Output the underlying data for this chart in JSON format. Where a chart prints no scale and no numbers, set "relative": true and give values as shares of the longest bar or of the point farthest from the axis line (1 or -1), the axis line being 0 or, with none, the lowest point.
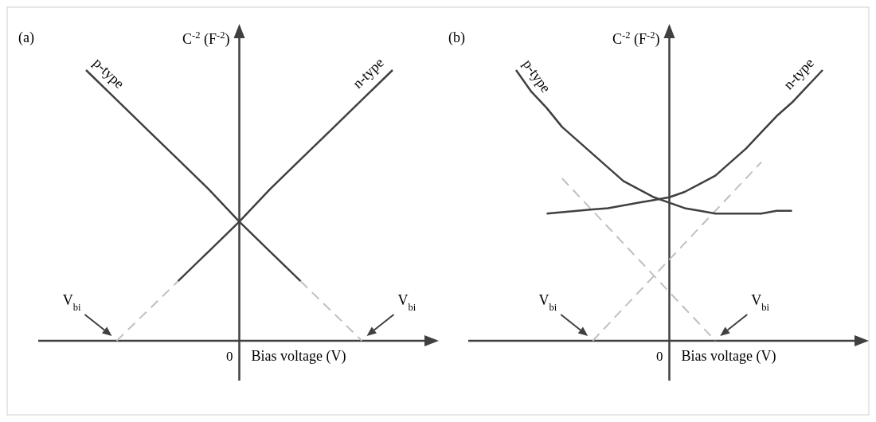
{
  "chart_data": [
    {
      "type": "line",
      "title": "(a)",
      "xlabel": "Bias voltage (V)",
      "ylabel": "C$^{-2}$ (F$^{-2}$)",
      "relative": true,
      "categories": [
        null,
        null,
        null,
        null,
        null,
        null,
        null,
        null,
        null,
        null,
        null
      ],
      "series": [
        {
          "name": "p-type",
          "color": "#404040",
          "line_style": "solid",
          "values": [
            1.0,
            0.89,
            0.78,
            0.67,
            0.56,
            0.44,
            0.33,
            0.22,
            null,
            null,
            null
          ]
        },
        {
          "color": "#c0c0c0",
          "line_style": "dashed",
          "values": [
            null,
            null,
            null,
            null,
            null,
            null,
            null,
            0.22,
            0.11,
            0,
            null
          ]
        },
        {
          "name": "n-type",
          "color": "#404040",
          "line_style": "solid",
          "values": [
            null,
            null,
            null,
            0.22,
            0.33,
            0.44,
            0.56,
            0.67,
            0.78,
            0.89,
            1.0
          ]
        },
        {
          "color": "#c0c0c0",
          "line_style": "dashed",
          "values": [
            null,
            0,
            0.11,
            0.22,
            null,
            null,
            null,
            null,
            null,
            null,
            null
          ]
        }
      ],
      "annotations": [
        "V$_{bi}$",
        "V$_{bi}$",
        "0"
      ]
    },
    {
      "type": "line",
      "title": "(b)",
      "xlabel": "Bias voltage (V)",
      "ylabel": "C$^{-2}$ (F$^{-2}$)",
      "relative": true,
      "categories": [
        null,
        null,
        null,
        null,
        null,
        null,
        null,
        null,
        null,
        null,
        null,
        null,
        null,
        null,
        null,
        null,
        null,
        null,
        null,
        null,
        null
      ],
      "series": [
        {
          "color": "#c0c0c0",
          "line_style": "dashed",
          "values": [
            null,
            null,
            null,
            0.6,
            0.54,
            0.48,
            0.42,
            0.36,
            0.3,
            0.24,
            0.18,
            0.12,
            0.06,
            0,
            null,
            null,
            null,
            null,
            null,
            null,
            null
          ]
        },
        {
          "color": "#c0c0c0",
          "line_style": "dashed",
          "values": [
            null,
            null,
            null,
            null,
            null,
            0,
            0.06,
            0.12,
            0.18,
            0.24,
            0.3,
            0.36,
            0.42,
            0.48,
            0.54,
            0.6,
            0.66,
            null,
            null,
            null,
            null
          ]
        },
        {
          "name": "p-type",
          "color": "#404040",
          "line_style": "solid",
          "values": [
            1.0,
            0.92,
            0.86,
            0.79,
            0.74,
            0.69,
            0.64,
            0.59,
            0.56,
            0.53,
            0.51,
            0.49,
            0.48,
            0.47,
            0.47,
            0.47,
            0.47,
            0.48,
            0.48,
            null,
            null
          ]
        },
        {
          "name": "n-type",
          "color": "#404040",
          "line_style": "solid",
          "values": [
            null,
            null,
            0.47,
            0.475,
            0.48,
            0.485,
            0.49,
            0.5,
            0.51,
            0.52,
            0.53,
            0.55,
            0.58,
            0.61,
            0.66,
            0.71,
            0.77,
            0.83,
            0.88,
            0.94,
            1.0
          ]
        }
      ],
      "annotations": [
        "V$_{bi}$",
        "V$_{bi}$",
        "0"
      ]
    }
  ]
}
